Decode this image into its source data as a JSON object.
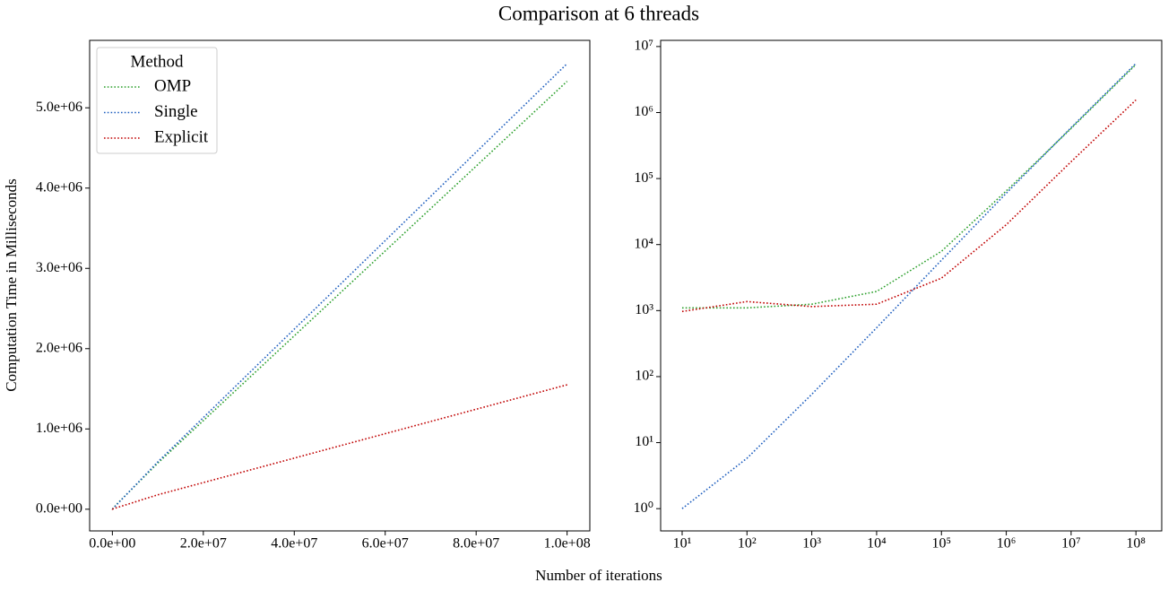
{
  "title": "Comparison at 6 threads",
  "x_label": "Number of iterations",
  "y_label": "Computation Time in Milliseconds",
  "chart_data": [
    {
      "type": "line",
      "x": [
        10,
        100,
        1000,
        10000,
        100000,
        1000000,
        10000000,
        100000000
      ],
      "series": [
        {
          "name": "OMP",
          "color": "#2ca02c",
          "values": [
            1100,
            1100,
            1250,
            1950,
            7900,
            65000,
            575000,
            5330000
          ]
        },
        {
          "name": "Single",
          "color": "#1f5fbf",
          "values": [
            1,
            5.8,
            54,
            550,
            5800,
            60000,
            590000,
            5550000
          ]
        },
        {
          "name": "Explicit",
          "color": "#c00000",
          "values": [
            970,
            1370,
            1150,
            1250,
            3100,
            20000,
            180000,
            1550000
          ]
        }
      ],
      "legend": "upper left",
      "legend_title": "Method",
      "xlim": [
        -5000000,
        105000000
      ],
      "xticks": [
        {
          "value": 0,
          "label": "0.0e+00"
        },
        {
          "value": 20000000,
          "label": "2.0e+07"
        },
        {
          "value": 40000000,
          "label": "4.0e+07"
        },
        {
          "value": 60000000,
          "label": "6.0e+07"
        },
        {
          "value": 80000000,
          "label": "8.0e+07"
        },
        {
          "value": 100000000,
          "label": "1.0e+08"
        }
      ],
      "ylim": [
        -270000,
        5840000
      ],
      "yticks": [
        {
          "value": 0,
          "label": "0.0e+00"
        },
        {
          "value": 1000000,
          "label": "1.0e+06"
        },
        {
          "value": 2000000,
          "label": "2.0e+06"
        },
        {
          "value": 3000000,
          "label": "3.0e+06"
        },
        {
          "value": 4000000,
          "label": "4.0e+06"
        },
        {
          "value": 5000000,
          "label": "5.0e+06"
        }
      ],
      "log": false
    },
    {
      "type": "line",
      "x": [
        10,
        100,
        1000,
        10000,
        100000,
        1000000,
        10000000,
        100000000
      ],
      "series": [
        {
          "color": "#2ca02c",
          "values": [
            1100,
            1100,
            1250,
            1950,
            7900,
            65000,
            575000,
            5330000
          ]
        },
        {
          "color": "#1f5fbf",
          "values": [
            1,
            5.8,
            54,
            550,
            5800,
            60000,
            590000,
            5550000
          ]
        },
        {
          "color": "#c00000",
          "values": [
            970,
            1370,
            1150,
            1250,
            3100,
            20000,
            180000,
            1550000
          ]
        }
      ],
      "xlim": [
        4.66,
        250000000
      ],
      "xticks": [
        {
          "value": 10,
          "label": "10¹"
        },
        {
          "value": 100,
          "label": "10²"
        },
        {
          "value": 1000,
          "label": "10³"
        },
        {
          "value": 10000,
          "label": "10⁴"
        },
        {
          "value": 100000,
          "label": "10⁵"
        },
        {
          "value": 1000000,
          "label": "10⁶"
        },
        {
          "value": 10000000,
          "label": "10⁷"
        },
        {
          "value": 100000000,
          "label": "10⁸"
        }
      ],
      "ylim": [
        0.46,
        12400000
      ],
      "yticks": [
        {
          "value": 1,
          "label": "10⁰"
        },
        {
          "value": 10,
          "label": "10¹"
        },
        {
          "value": 100,
          "label": "10²"
        },
        {
          "value": 1000,
          "label": "10³"
        },
        {
          "value": 10000,
          "label": "10⁴"
        },
        {
          "value": 100000,
          "label": "10⁵"
        },
        {
          "value": 1000000,
          "label": "10⁶"
        },
        {
          "value": 10000000,
          "label": "10⁷"
        }
      ],
      "log": true
    }
  ]
}
